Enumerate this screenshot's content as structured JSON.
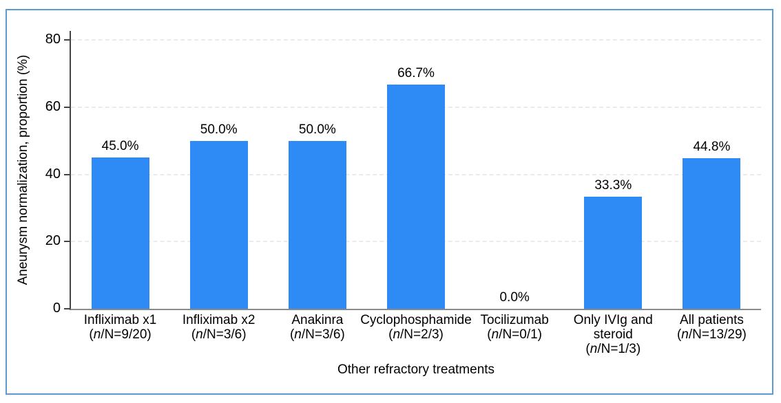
{
  "figure": {
    "frame_color": "#5B9BD5",
    "background": "#FFFFFF"
  },
  "chart_data": {
    "type": "bar",
    "title": "",
    "xlabel": "Other refractory treatments",
    "ylabel": "Aneurysm normalization, proportion (%)",
    "ylim": [
      0,
      80
    ],
    "yticks": [
      0,
      20,
      40,
      60,
      80
    ],
    "grid": "horizontal-dashed",
    "legend": "none",
    "bar_color": "#2E8BF5",
    "grid_color": "#EBEBEB",
    "yaxis_color": "#444444",
    "xaxis_color": "#8A8A8A",
    "ratio_label": {
      "italic": "n",
      "rest": "/N="
    },
    "categories": [
      {
        "name_lines": [
          "Infliximab x1"
        ],
        "ratio": "9/20",
        "value": 45.0,
        "value_label": "45.0%"
      },
      {
        "name_lines": [
          "Infliximab x2"
        ],
        "ratio": "3/6",
        "value": 50.0,
        "value_label": "50.0%"
      },
      {
        "name_lines": [
          "Anakinra"
        ],
        "ratio": "3/6",
        "value": 50.0,
        "value_label": "50.0%"
      },
      {
        "name_lines": [
          "Cyclophosphamide"
        ],
        "ratio": "2/3",
        "value": 66.7,
        "value_label": "66.7%"
      },
      {
        "name_lines": [
          "Tocilizumab"
        ],
        "ratio": "0/1",
        "value": 0.0,
        "value_label": "0.0%"
      },
      {
        "name_lines": [
          "Only IVIg and",
          "steroid"
        ],
        "ratio": "1/3",
        "value": 33.3,
        "value_label": "33.3%"
      },
      {
        "name_lines": [
          "All patients"
        ],
        "ratio": "13/29",
        "value": 44.8,
        "value_label": "44.8%"
      }
    ]
  }
}
